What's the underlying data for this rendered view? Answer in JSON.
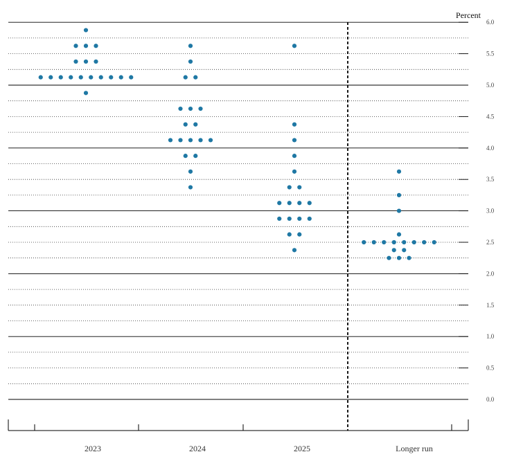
{
  "chart_data": {
    "type": "scatter",
    "y_unit_label": "Percent",
    "categories": [
      "2023",
      "2024",
      "2025",
      "Longer run"
    ],
    "ylim": [
      0.0,
      6.0
    ],
    "y_ticks": [
      "0.0",
      "0.5",
      "1.0",
      "1.5",
      "2.0",
      "2.5",
      "3.0",
      "3.5",
      "4.0",
      "4.5",
      "5.0",
      "5.5",
      "6.0"
    ],
    "dot_color": "#1f78a4",
    "grid": "dotted every 0.25, solid every 1.0",
    "divider_before": "Longer run",
    "dots": [
      {
        "category": "2023",
        "y": 5.875,
        "count": 1
      },
      {
        "category": "2023",
        "y": 5.625,
        "count": 3
      },
      {
        "category": "2023",
        "y": 5.375,
        "count": 3
      },
      {
        "category": "2023",
        "y": 5.125,
        "count": 10
      },
      {
        "category": "2023",
        "y": 4.875,
        "count": 1
      },
      {
        "category": "2024",
        "y": 5.625,
        "count": 1
      },
      {
        "category": "2024",
        "y": 5.375,
        "count": 1
      },
      {
        "category": "2024",
        "y": 5.125,
        "count": 2
      },
      {
        "category": "2024",
        "y": 4.625,
        "count": 3
      },
      {
        "category": "2024",
        "y": 4.375,
        "count": 2
      },
      {
        "category": "2024",
        "y": 4.125,
        "count": 5
      },
      {
        "category": "2024",
        "y": 3.875,
        "count": 2
      },
      {
        "category": "2024",
        "y": 3.625,
        "count": 1
      },
      {
        "category": "2024",
        "y": 3.375,
        "count": 1
      },
      {
        "category": "2025",
        "y": 5.625,
        "count": 1
      },
      {
        "category": "2025",
        "y": 4.375,
        "count": 1
      },
      {
        "category": "2025",
        "y": 4.125,
        "count": 1
      },
      {
        "category": "2025",
        "y": 3.875,
        "count": 1
      },
      {
        "category": "2025",
        "y": 3.625,
        "count": 1
      },
      {
        "category": "2025",
        "y": 3.375,
        "count": 2
      },
      {
        "category": "2025",
        "y": 3.125,
        "count": 4
      },
      {
        "category": "2025",
        "y": 2.875,
        "count": 4
      },
      {
        "category": "2025",
        "y": 2.625,
        "count": 2
      },
      {
        "category": "2025",
        "y": 2.375,
        "count": 1
      },
      {
        "category": "Longer run",
        "y": 3.625,
        "count": 1
      },
      {
        "category": "Longer run",
        "y": 3.25,
        "count": 1
      },
      {
        "category": "Longer run",
        "y": 3.0,
        "count": 1
      },
      {
        "category": "Longer run",
        "y": 2.625,
        "count": 1
      },
      {
        "category": "Longer run",
        "y": 2.5,
        "count": 8
      },
      {
        "category": "Longer run",
        "y": 2.375,
        "count": 2
      },
      {
        "category": "Longer run",
        "y": 2.25,
        "count": 3
      }
    ]
  }
}
